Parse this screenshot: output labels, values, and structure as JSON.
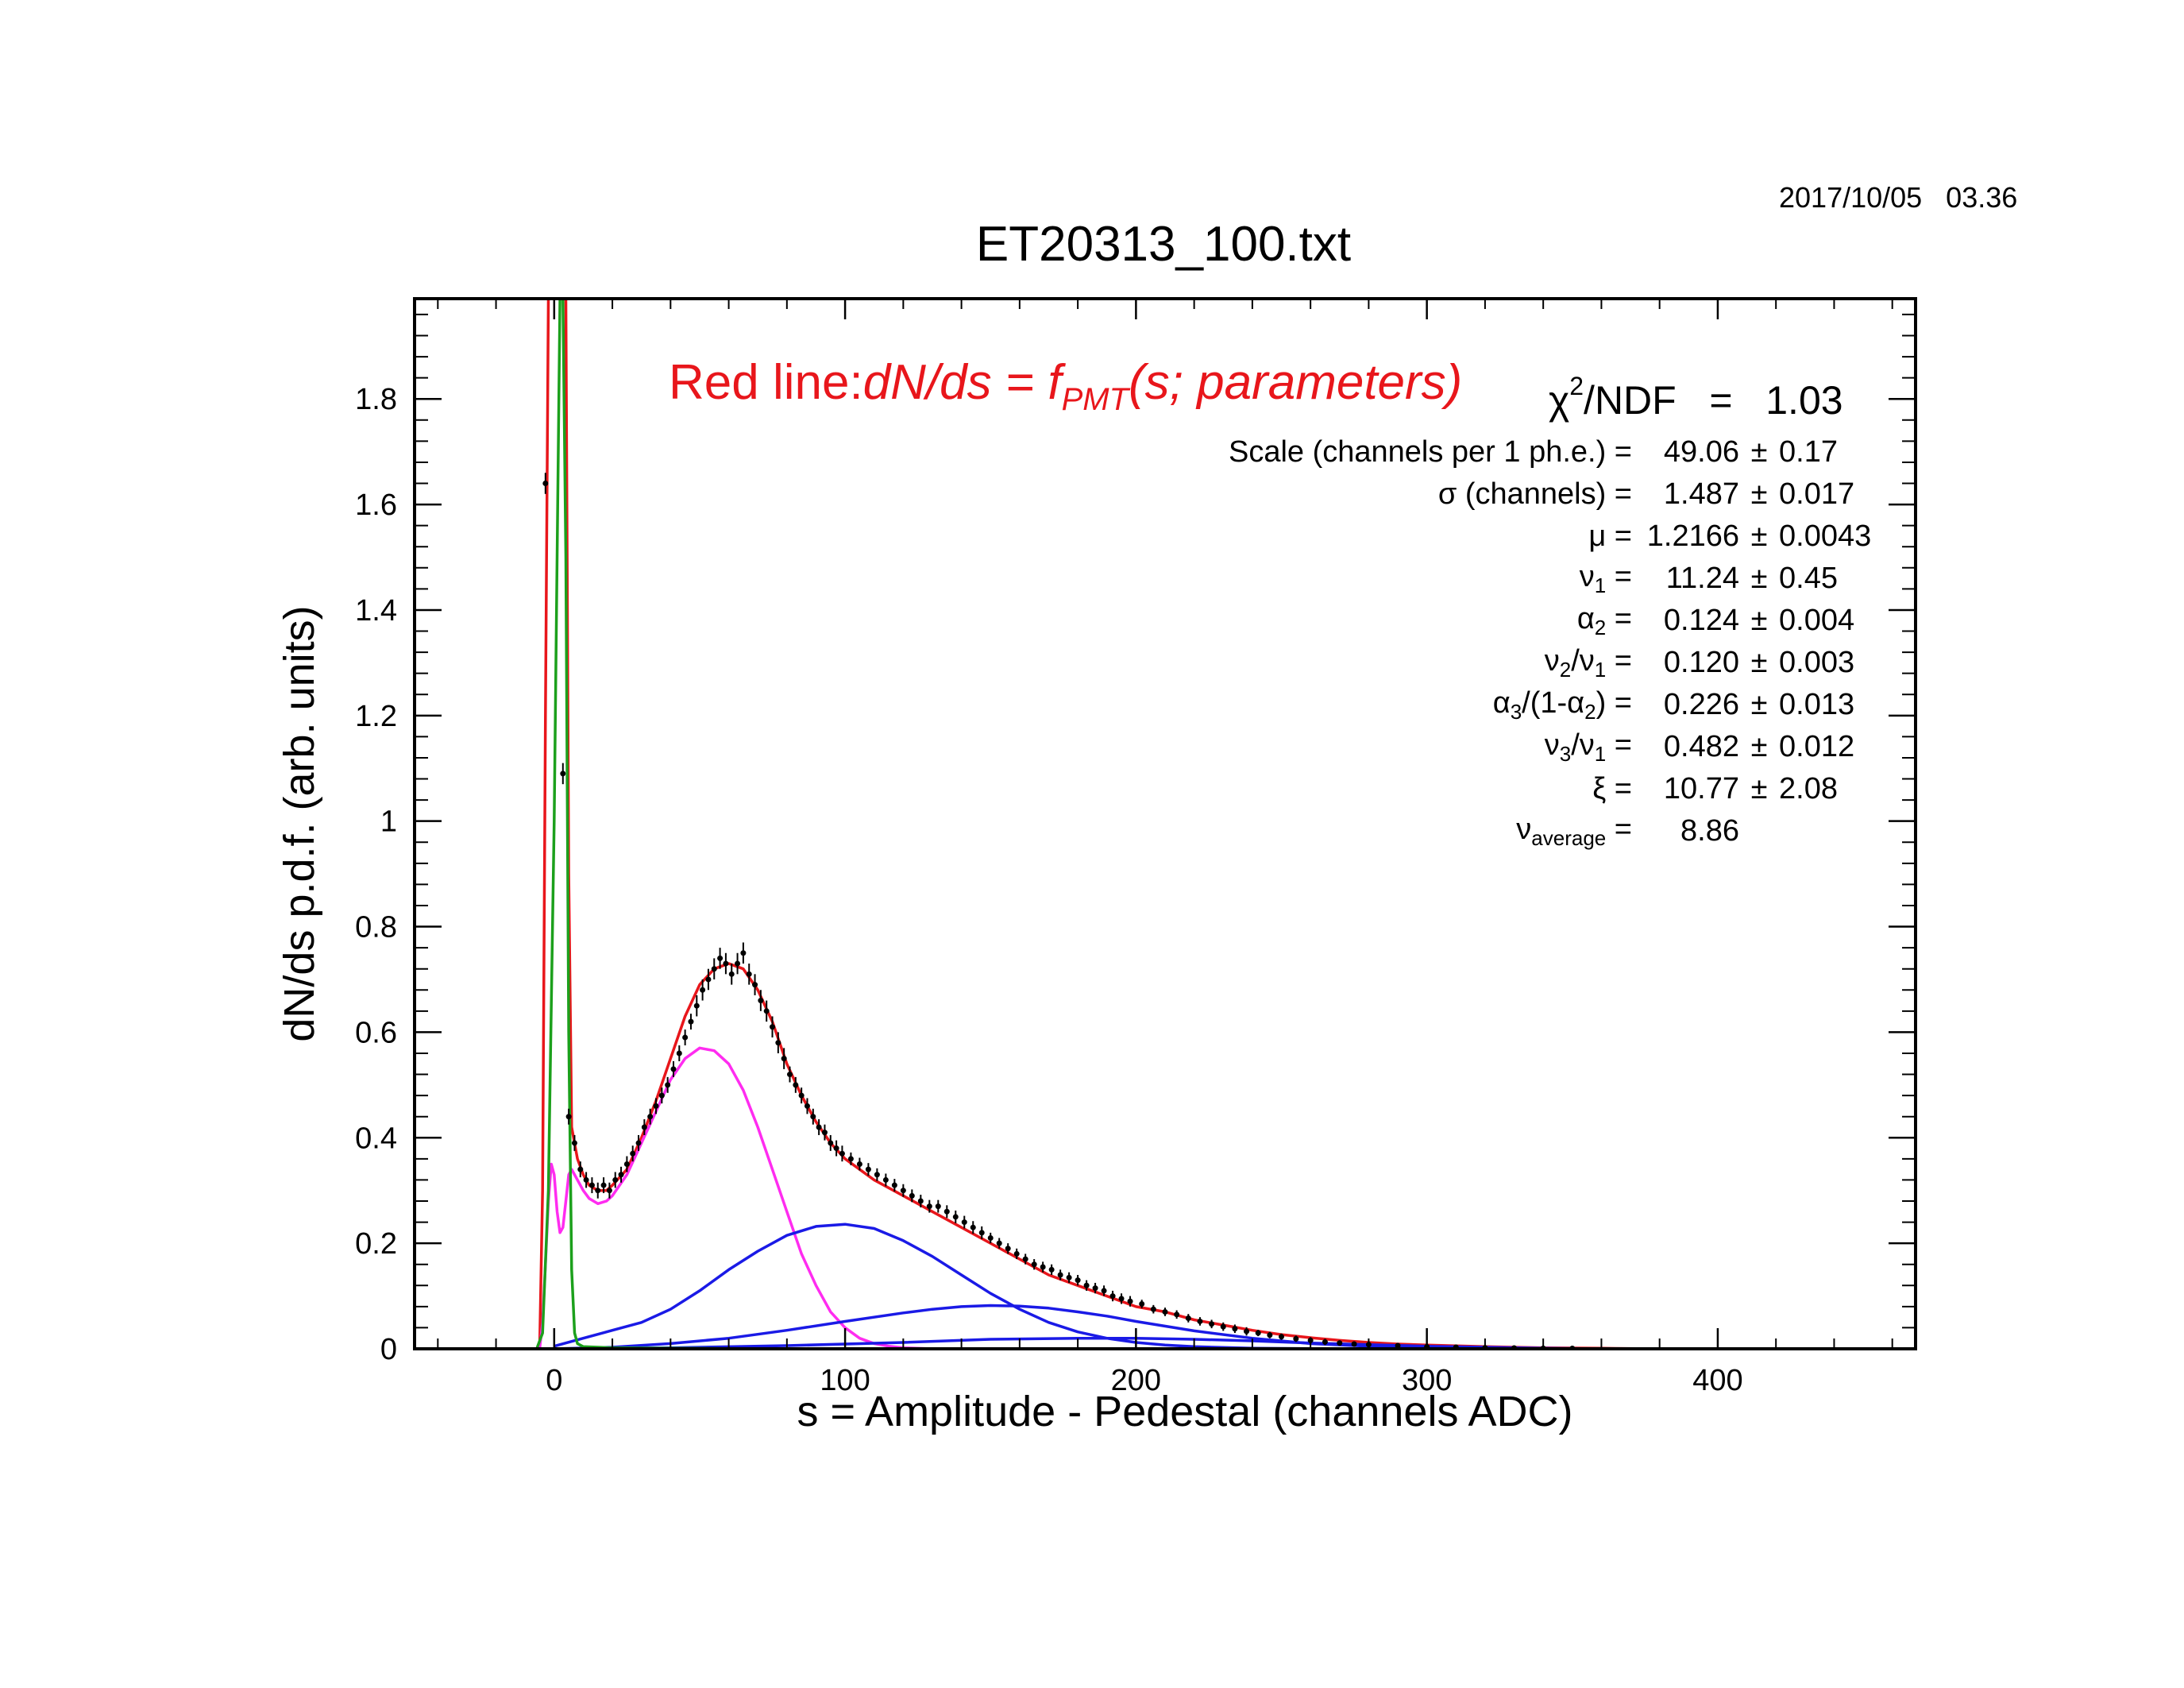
{
  "header": {
    "datestamp": "2017/10/05   03.36",
    "title": "ET20313_100.txt"
  },
  "legend_text": {
    "prefix": "Red line:",
    "formula_lhs": "dN/ds = f",
    "formula_sub": "PMT",
    "formula_rhs": "(s; parameters)"
  },
  "fit_stats": {
    "chi_label": "χ",
    "chi_sup": "2",
    "chi_rest": "/NDF   =   1.03",
    "parameters": [
      {
        "label": "Scale (channels per 1 ph.e.) =",
        "sub": "",
        "label_after": "",
        "value": "49.06",
        "pm": "±",
        "error": " 0.17"
      },
      {
        "label": "σ (channels) =",
        "sub": "",
        "label_after": "",
        "value": "1.487",
        "pm": "±",
        "error": "0.017"
      },
      {
        "label": "μ  =",
        "sub": "",
        "label_after": "",
        "value": "1.2166",
        "pm": "±",
        "error": "0.0043"
      },
      {
        "label": "ν",
        "sub": "1",
        "label_after": " =",
        "value": "11.24",
        "pm": "±",
        "error": " 0.45"
      },
      {
        "label": "α",
        "sub": "2",
        "label_after": " =",
        "value": "0.124",
        "pm": "±",
        "error": "0.004"
      },
      {
        "label": "ν",
        "sub": "2",
        "label_after": "/ν",
        "sub2": "1",
        "label_after2": " =",
        "value": "0.120",
        "pm": "±",
        "error": "0.003"
      },
      {
        "label": "α",
        "sub": "3",
        "label_after": "/(1-α",
        "sub2": "2",
        "label_after2": ") =",
        "value": "0.226",
        "pm": "±",
        "error": "0.013"
      },
      {
        "label": "ν",
        "sub": "3",
        "label_after": "/ν",
        "sub2": "1",
        "label_after2": " =",
        "value": "0.482",
        "pm": "±",
        "error": "0.012"
      },
      {
        "label": "ξ  =",
        "sub": "",
        "label_after": "",
        "value": "10.77",
        "pm": "±",
        "error": " 2.08"
      },
      {
        "label": "ν",
        "sub": "average",
        "label_after": " =",
        "value": "8.86",
        "pm": "",
        "error": ""
      }
    ]
  },
  "colors": {
    "fit_total": "#e8161b",
    "single_pe": "#ff2cf0",
    "multi_pe": "#1a1ae6",
    "pedestal": "#1ca01c",
    "data_points": "#000000",
    "frame": "#000000"
  },
  "chart_data": {
    "type": "line",
    "title": "ET20313_100.txt",
    "xlabel": "s = Amplitude - Pedestal (channels ADC)",
    "ylabel": "dN/ds p.d.f. (arb. units)",
    "xlim": [
      -48,
      468
    ],
    "ylim": [
      0,
      1.99
    ],
    "xticks": [
      0,
      100,
      200,
      300,
      400
    ],
    "yticks": [
      0,
      0.2,
      0.4,
      0.6,
      0.8,
      1,
      1.2,
      1.4,
      1.6,
      1.8
    ],
    "xtick_labels": [
      "0",
      "100",
      "200",
      "300",
      "400"
    ],
    "ytick_labels": [
      "0",
      "0.2",
      "0.4",
      "0.6",
      "0.8",
      "1",
      "1.2",
      "1.4",
      "1.6",
      "1.8"
    ],
    "grid": false,
    "series": [
      {
        "kind": "line",
        "color": "#e8161b",
        "x": [
          -5,
          -4,
          -3,
          -2,
          -1,
          0,
          1,
          2,
          3,
          4,
          5,
          6,
          8,
          10,
          12,
          15,
          18,
          20,
          25,
          30,
          35,
          40,
          45,
          50,
          55,
          60,
          65,
          70,
          75,
          80,
          85,
          90,
          95,
          100,
          110,
          120,
          130,
          140,
          150,
          160,
          170,
          180,
          190,
          200,
          210,
          220,
          230,
          240,
          250,
          260,
          270,
          280,
          290,
          300,
          320,
          340,
          360,
          380
        ],
        "y": [
          0.0,
          0.3,
          1.2,
          1.99,
          1.99,
          1.99,
          1.99,
          1.99,
          1.99,
          1.99,
          0.9,
          0.42,
          0.36,
          0.33,
          0.31,
          0.3,
          0.3,
          0.31,
          0.34,
          0.4,
          0.47,
          0.55,
          0.63,
          0.69,
          0.72,
          0.73,
          0.72,
          0.68,
          0.62,
          0.54,
          0.48,
          0.43,
          0.39,
          0.36,
          0.32,
          0.29,
          0.26,
          0.23,
          0.2,
          0.17,
          0.14,
          0.12,
          0.1,
          0.08,
          0.07,
          0.055,
          0.045,
          0.035,
          0.027,
          0.021,
          0.016,
          0.012,
          0.009,
          0.007,
          0.004,
          0.002,
          0.001,
          0.0
        ]
      },
      {
        "kind": "line",
        "color": "#ff2cf0",
        "x": [
          -5,
          -4,
          -3,
          -2,
          -1,
          0,
          1,
          2,
          3,
          4,
          5,
          6,
          8,
          10,
          12,
          15,
          18,
          20,
          25,
          30,
          35,
          40,
          45,
          50,
          55,
          60,
          65,
          70,
          75,
          80,
          85,
          90,
          95,
          100,
          105,
          110,
          115,
          120,
          130
        ],
        "y": [
          0.0,
          0.05,
          0.16,
          0.28,
          0.35,
          0.33,
          0.26,
          0.22,
          0.23,
          0.28,
          0.33,
          0.34,
          0.32,
          0.3,
          0.285,
          0.275,
          0.28,
          0.29,
          0.33,
          0.39,
          0.45,
          0.51,
          0.55,
          0.57,
          0.565,
          0.54,
          0.49,
          0.42,
          0.34,
          0.26,
          0.18,
          0.12,
          0.07,
          0.04,
          0.02,
          0.01,
          0.005,
          0.002,
          0.0
        ]
      },
      {
        "kind": "line",
        "color": "#1a1ae6",
        "x": [
          0,
          10,
          20,
          30,
          40,
          50,
          60,
          70,
          80,
          90,
          100,
          110,
          120,
          130,
          140,
          150,
          160,
          170,
          180,
          190,
          200,
          210,
          220,
          240,
          260,
          280
        ],
        "y": [
          0.005,
          0.02,
          0.035,
          0.05,
          0.075,
          0.11,
          0.15,
          0.185,
          0.215,
          0.232,
          0.236,
          0.228,
          0.205,
          0.175,
          0.14,
          0.105,
          0.075,
          0.05,
          0.032,
          0.02,
          0.012,
          0.007,
          0.004,
          0.001,
          0.0003,
          0.0
        ]
      },
      {
        "kind": "line",
        "color": "#1a1ae6",
        "x": [
          0,
          20,
          40,
          60,
          80,
          100,
          120,
          130,
          140,
          150,
          160,
          170,
          180,
          190,
          200,
          220,
          240,
          260,
          280,
          300,
          320
        ],
        "y": [
          0.0,
          0.003,
          0.01,
          0.02,
          0.035,
          0.052,
          0.068,
          0.075,
          0.08,
          0.082,
          0.081,
          0.077,
          0.07,
          0.062,
          0.052,
          0.034,
          0.02,
          0.01,
          0.005,
          0.002,
          0.0
        ]
      },
      {
        "kind": "line",
        "color": "#1a1ae6",
        "x": [
          0,
          40,
          80,
          120,
          150,
          180,
          200,
          220,
          240,
          260,
          280,
          300,
          320,
          340,
          360
        ],
        "y": [
          0.0,
          0.002,
          0.006,
          0.012,
          0.018,
          0.02,
          0.02,
          0.018,
          0.015,
          0.011,
          0.008,
          0.005,
          0.003,
          0.001,
          0.0
        ]
      },
      {
        "kind": "line",
        "color": "#1ca01c",
        "x": [
          -6,
          -4,
          -2,
          0,
          2,
          3,
          4,
          5,
          6,
          7,
          8,
          10,
          20,
          40,
          60,
          80,
          100
        ],
        "y": [
          0.0,
          0.03,
          0.3,
          1.0,
          1.99,
          1.99,
          1.5,
          0.6,
          0.15,
          0.03,
          0.01,
          0.004,
          0.002,
          0.001,
          0.0005,
          0.0002,
          0.0
        ]
      },
      {
        "kind": "points",
        "color": "#000000",
        "x": [
          -3,
          3,
          5,
          7,
          9,
          11,
          13,
          15,
          17,
          19,
          21,
          23,
          25,
          27,
          29,
          31,
          33,
          35,
          37,
          39,
          41,
          43,
          45,
          47,
          49,
          51,
          53,
          55,
          57,
          59,
          61,
          63,
          65,
          67,
          69,
          71,
          73,
          75,
          77,
          79,
          81,
          83,
          85,
          87,
          89,
          91,
          93,
          95,
          97,
          99,
          102,
          105,
          108,
          111,
          114,
          117,
          120,
          123,
          126,
          129,
          132,
          135,
          138,
          141,
          144,
          147,
          150,
          153,
          156,
          159,
          162,
          165,
          168,
          171,
          174,
          177,
          180,
          183,
          186,
          189,
          192,
          195,
          198,
          202,
          206,
          210,
          214,
          218,
          222,
          226,
          230,
          234,
          238,
          242,
          246,
          250,
          255,
          260,
          265,
          270,
          275,
          280,
          290,
          300,
          310,
          320,
          330,
          340,
          350
        ],
        "y": [
          1.64,
          1.09,
          0.44,
          0.39,
          0.34,
          0.32,
          0.31,
          0.3,
          0.31,
          0.3,
          0.32,
          0.33,
          0.35,
          0.37,
          0.39,
          0.42,
          0.44,
          0.46,
          0.48,
          0.5,
          0.53,
          0.56,
          0.59,
          0.62,
          0.65,
          0.68,
          0.7,
          0.72,
          0.74,
          0.73,
          0.71,
          0.73,
          0.75,
          0.71,
          0.69,
          0.66,
          0.64,
          0.61,
          0.58,
          0.55,
          0.52,
          0.5,
          0.48,
          0.46,
          0.44,
          0.42,
          0.41,
          0.39,
          0.38,
          0.37,
          0.36,
          0.35,
          0.34,
          0.33,
          0.32,
          0.31,
          0.3,
          0.29,
          0.28,
          0.27,
          0.27,
          0.26,
          0.25,
          0.24,
          0.23,
          0.22,
          0.21,
          0.2,
          0.19,
          0.18,
          0.17,
          0.16,
          0.155,
          0.15,
          0.14,
          0.135,
          0.13,
          0.12,
          0.115,
          0.11,
          0.1,
          0.095,
          0.09,
          0.085,
          0.075,
          0.07,
          0.065,
          0.058,
          0.052,
          0.047,
          0.042,
          0.038,
          0.033,
          0.03,
          0.026,
          0.023,
          0.019,
          0.016,
          0.013,
          0.011,
          0.009,
          0.008,
          0.006,
          0.004,
          0.003,
          0.002,
          0.0015,
          0.001,
          0.0008
        ],
        "err": [
          0.02,
          0.02,
          0.015,
          0.015,
          0.015,
          0.015,
          0.015,
          0.015,
          0.015,
          0.015,
          0.015,
          0.015,
          0.015,
          0.015,
          0.015,
          0.015,
          0.015,
          0.015,
          0.015,
          0.015,
          0.015,
          0.015,
          0.015,
          0.015,
          0.02,
          0.02,
          0.02,
          0.02,
          0.02,
          0.02,
          0.02,
          0.02,
          0.02,
          0.02,
          0.02,
          0.02,
          0.02,
          0.02,
          0.02,
          0.02,
          0.015,
          0.015,
          0.015,
          0.015,
          0.015,
          0.015,
          0.015,
          0.015,
          0.015,
          0.015,
          0.012,
          0.012,
          0.012,
          0.012,
          0.012,
          0.012,
          0.012,
          0.012,
          0.012,
          0.012,
          0.012,
          0.012,
          0.012,
          0.012,
          0.012,
          0.012,
          0.01,
          0.01,
          0.01,
          0.01,
          0.01,
          0.01,
          0.01,
          0.01,
          0.01,
          0.01,
          0.01,
          0.01,
          0.01,
          0.01,
          0.01,
          0.01,
          0.01,
          0.008,
          0.008,
          0.008,
          0.008,
          0.008,
          0.008,
          0.008,
          0.008,
          0.008,
          0.008,
          0.006,
          0.006,
          0.006,
          0.006,
          0.006,
          0.006,
          0.005,
          0.005,
          0.005,
          0.004,
          0.004,
          0.004,
          0.003,
          0.003,
          0.003,
          0.003
        ]
      }
    ]
  }
}
